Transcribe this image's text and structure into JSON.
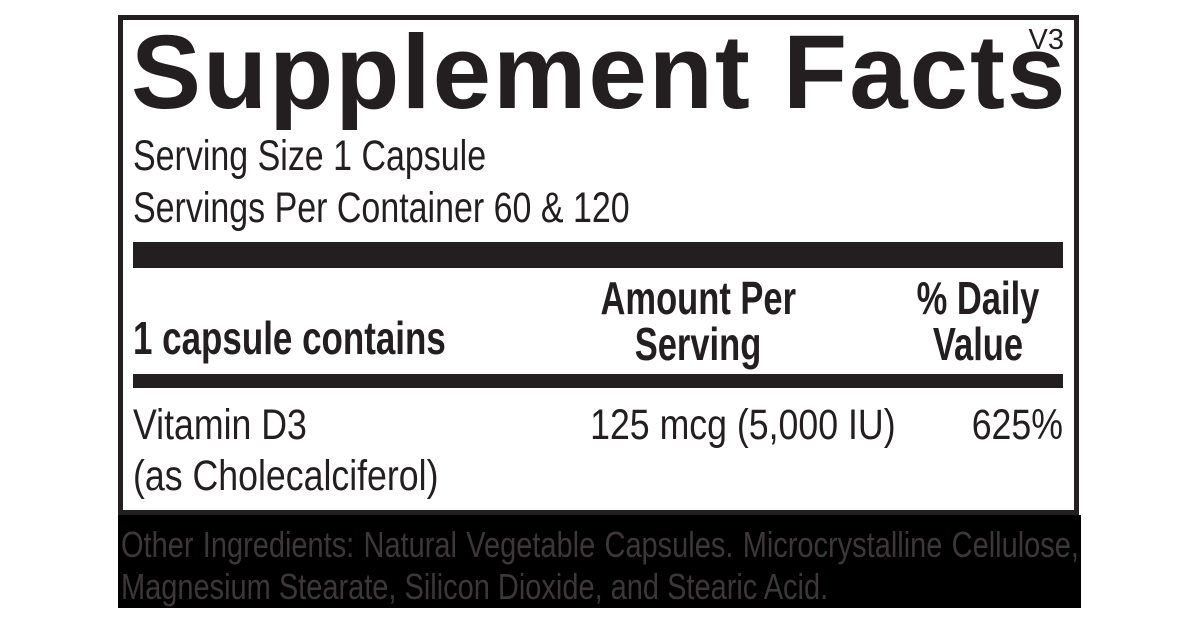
{
  "label": {
    "version": "V3",
    "title": "Supplement Facts",
    "serving": {
      "size": "Serving Size 1 Capsule",
      "per_container": "Servings Per Container 60 & 120"
    },
    "table": {
      "header": {
        "left": "1 capsule contains",
        "amount_line1": "Amount Per",
        "amount_line2": "Serving",
        "daily_line1": "% Daily",
        "daily_line2": "Value"
      },
      "rows": [
        {
          "name": "Vitamin D3",
          "form": "(as Cholecalciferol)",
          "amount_per_serving": "125 mcg (5,000 IU)",
          "percent_daily_value": "625%"
        }
      ]
    },
    "other_ingredients": {
      "line1": "Other Ingredients: Natural Vegetable Capsules. Microcrystalline Cellulose,",
      "line2": "Magnesium Stearate, Silicon Dioxide, and Stearic Acid."
    },
    "colors": {
      "ink": "#231f20",
      "band_background": "#000000",
      "band_text": "#3d3739"
    }
  }
}
